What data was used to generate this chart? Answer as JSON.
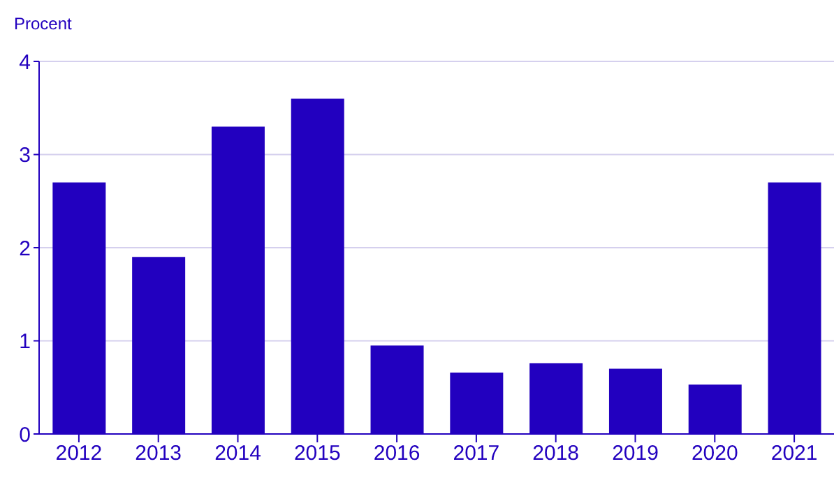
{
  "chart_data": {
    "type": "bar",
    "ylabel": "Procent",
    "categories": [
      "2012",
      "2013",
      "2014",
      "2015",
      "2016",
      "2017",
      "2018",
      "2019",
      "2020",
      "2021"
    ],
    "values": [
      2.7,
      1.9,
      3.3,
      3.6,
      0.95,
      0.66,
      0.76,
      0.7,
      0.53,
      2.7
    ],
    "color": "#2200bf",
    "ylim": [
      0,
      4
    ],
    "yticks": [
      0,
      1,
      2,
      3,
      4
    ],
    "grid": "y"
  }
}
